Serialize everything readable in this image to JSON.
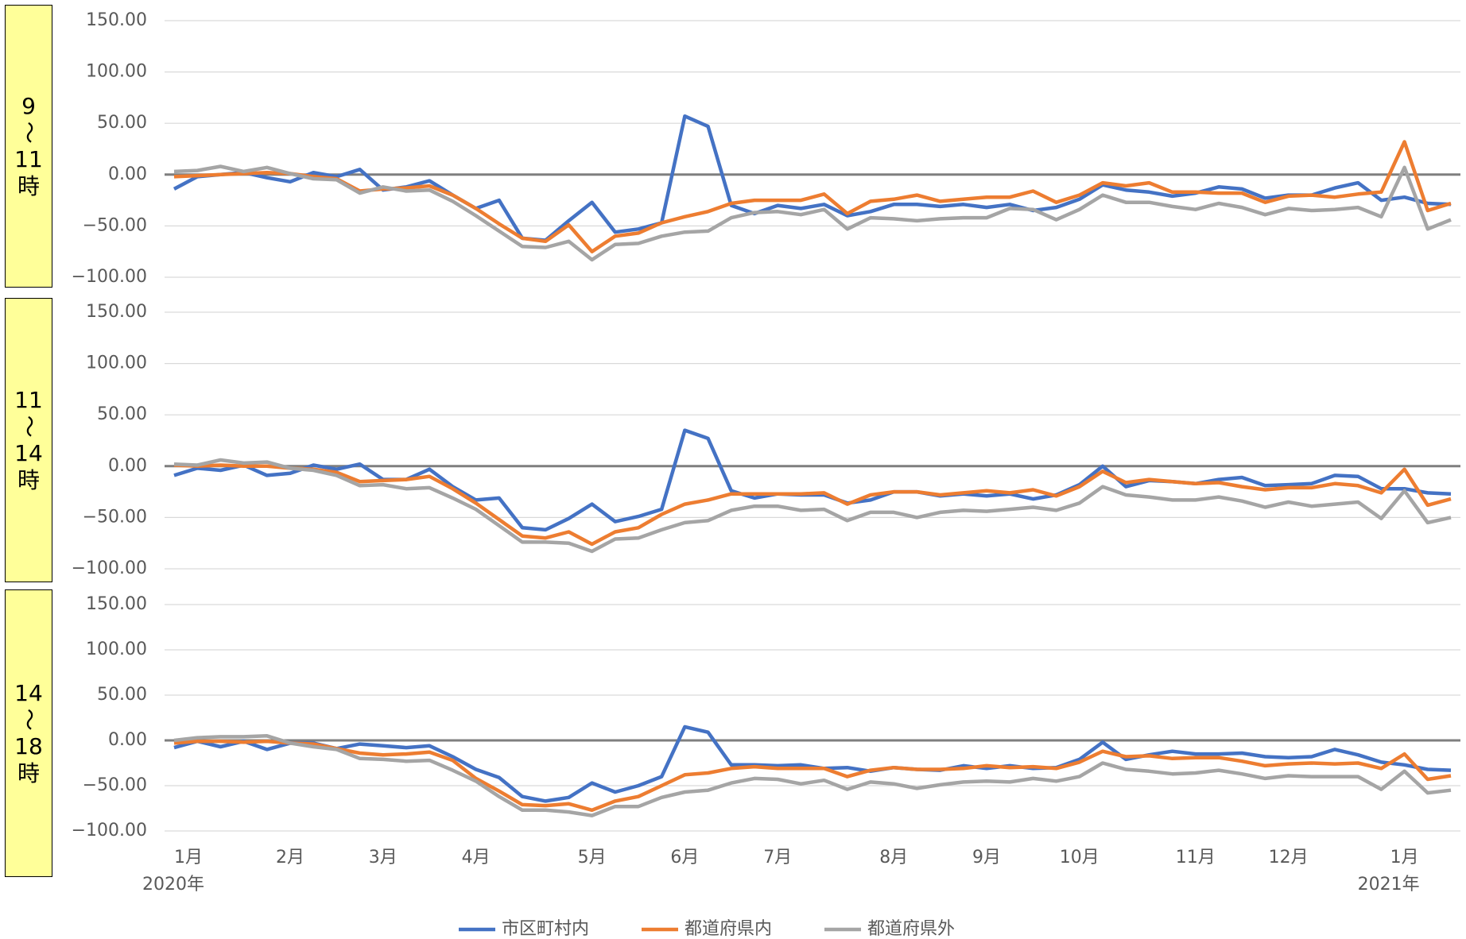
{
  "chart_data": {
    "type": "line",
    "categories": [
      "1月",
      null,
      null,
      null,
      null,
      "2月",
      null,
      null,
      null,
      "3月",
      null,
      null,
      null,
      "4月",
      null,
      null,
      null,
      null,
      "5月",
      null,
      null,
      null,
      "6月",
      null,
      null,
      null,
      "7月",
      null,
      null,
      null,
      null,
      "8月",
      null,
      null,
      null,
      "9月",
      null,
      null,
      null,
      "10月",
      null,
      null,
      null,
      null,
      "11月",
      null,
      null,
      null,
      "12月",
      null,
      null,
      null,
      null,
      "1月",
      null,
      null
    ],
    "x_sublabels": [
      "2020年",
      null,
      null,
      null,
      null,
      null,
      null,
      null,
      null,
      null,
      null,
      null,
      null,
      null,
      null,
      null,
      null,
      null,
      null,
      null,
      null,
      null,
      null,
      null,
      null,
      null,
      null,
      null,
      null,
      null,
      null,
      null,
      null,
      null,
      null,
      null,
      null,
      null,
      null,
      null,
      null,
      null,
      null,
      null,
      null,
      null,
      null,
      null,
      null,
      null,
      null,
      null,
      null,
      "2021年",
      null,
      null
    ],
    "ylim": [
      -100,
      150
    ],
    "yticks": [
      {
        "value": -100,
        "label": "−100.00"
      },
      {
        "value": -50,
        "label": "−50.00"
      },
      {
        "value": 0,
        "label": "0.00"
      },
      {
        "value": 50,
        "label": "50.00"
      },
      {
        "value": 100,
        "label": "100.00"
      },
      {
        "value": 150,
        "label": "150.00"
      }
    ],
    "grid": true,
    "legend": "bottom",
    "series": [
      {
        "name": "市区町村内",
        "color": "#4472c4"
      },
      {
        "name": "都道府県内",
        "color": "#ed7d31"
      },
      {
        "name": "都道府県外",
        "color": "#a5a5a5"
      }
    ],
    "panels": [
      {
        "label": "9～11時",
        "series": [
          {
            "values": [
              -14,
              -2,
              0,
              2,
              -3,
              -7,
              2,
              -2,
              5,
              -15,
              -12,
              -6,
              -20,
              -33,
              -25,
              -62,
              -64,
              -45,
              -27,
              -56,
              -53,
              -47,
              57,
              47,
              -30,
              -38,
              -30,
              -33,
              -29,
              -40,
              -36,
              -29,
              -29,
              -31,
              -29,
              -32,
              -29,
              -35,
              -32,
              -24,
              -10,
              -15,
              -17,
              -21,
              -18,
              -12,
              -14,
              -23,
              -20,
              -20,
              -13,
              -8,
              -25,
              -22,
              -28,
              -29
            ]
          },
          {
            "values": [
              -2,
              -1,
              0,
              1,
              2,
              1,
              -2,
              -4,
              -16,
              -14,
              -13,
              -11,
              -20,
              -33,
              -48,
              -62,
              -65,
              -49,
              -75,
              -60,
              -57,
              -47,
              -41,
              -36,
              -28,
              -25,
              -25,
              -25,
              -19,
              -38,
              -26,
              -24,
              -20,
              -26,
              -24,
              -22,
              -22,
              -16,
              -27,
              -20,
              -8,
              -11,
              -8,
              -17,
              -17,
              -18,
              -18,
              -27,
              -21,
              -20,
              -22,
              -19,
              -17,
              32,
              -35,
              -28
            ]
          },
          {
            "values": [
              3,
              4,
              8,
              3,
              7,
              1,
              -4,
              -5,
              -18,
              -12,
              -16,
              -15,
              -26,
              -40,
              -55,
              -70,
              -71,
              -65,
              -83,
              -68,
              -67,
              -60,
              -56,
              -55,
              -42,
              -37,
              -36,
              -39,
              -34,
              -53,
              -42,
              -43,
              -45,
              -43,
              -42,
              -42,
              -33,
              -34,
              -44,
              -34,
              -20,
              -27,
              -27,
              -31,
              -34,
              -28,
              -32,
              -39,
              -33,
              -35,
              -34,
              -32,
              -41,
              7,
              -53,
              -44
            ]
          }
        ]
      },
      {
        "label": "11～14時",
        "series": [
          {
            "values": [
              -9,
              -2,
              -4,
              1,
              -9,
              -7,
              1,
              -3,
              2,
              -13,
              -13,
              -3,
              -20,
              -33,
              -31,
              -60,
              -62,
              -51,
              -37,
              -54,
              -49,
              -42,
              35,
              27,
              -24,
              -31,
              -27,
              -28,
              -28,
              -36,
              -33,
              -25,
              -25,
              -29,
              -27,
              -29,
              -27,
              -32,
              -28,
              -18,
              0,
              -20,
              -14,
              -15,
              -17,
              -13,
              -11,
              -19,
              -18,
              -17,
              -9,
              -10,
              -22,
              -22,
              -26,
              -27
            ]
          },
          {
            "values": [
              1,
              0,
              1,
              0,
              0,
              -2,
              -3,
              -6,
              -15,
              -14,
              -13,
              -10,
              -22,
              -36,
              -52,
              -68,
              -70,
              -64,
              -76,
              -64,
              -60,
              -47,
              -37,
              -33,
              -27,
              -27,
              -27,
              -27,
              -26,
              -37,
              -28,
              -25,
              -25,
              -28,
              -26,
              -24,
              -26,
              -23,
              -29,
              -20,
              -5,
              -16,
              -13,
              -15,
              -17,
              -16,
              -20,
              -23,
              -21,
              -21,
              -17,
              -19,
              -26,
              -3,
              -38,
              -32
            ]
          },
          {
            "values": [
              2,
              1,
              6,
              3,
              4,
              -2,
              -4,
              -9,
              -19,
              -18,
              -22,
              -21,
              -31,
              -42,
              -58,
              -74,
              -74,
              -75,
              -83,
              -71,
              -70,
              -62,
              -55,
              -53,
              -43,
              -39,
              -39,
              -43,
              -42,
              -53,
              -45,
              -45,
              -50,
              -45,
              -43,
              -44,
              -42,
              -40,
              -43,
              -36,
              -20,
              -28,
              -30,
              -33,
              -33,
              -30,
              -34,
              -40,
              -35,
              -39,
              -37,
              -35,
              -51,
              -24,
              -55,
              -50
            ]
          }
        ]
      },
      {
        "label": "14～18時",
        "series": [
          {
            "values": [
              -8,
              -1,
              -7,
              -1,
              -10,
              -3,
              -3,
              -9,
              -4,
              -6,
              -8,
              -6,
              -18,
              -32,
              -41,
              -62,
              -67,
              -63,
              -47,
              -57,
              -50,
              -40,
              15,
              9,
              -27,
              -27,
              -28,
              -27,
              -31,
              -30,
              -34,
              -30,
              -32,
              -33,
              -28,
              -31,
              -28,
              -31,
              -30,
              -21,
              -2,
              -21,
              -16,
              -12,
              -15,
              -15,
              -14,
              -18,
              -19,
              -18,
              -10,
              -16,
              -24,
              -27,
              -32,
              -33
            ]
          },
          {
            "values": [
              -3,
              -1,
              -1,
              -2,
              -1,
              -3,
              -4,
              -9,
              -14,
              -16,
              -15,
              -13,
              -22,
              -42,
              -56,
              -71,
              -72,
              -70,
              -77,
              -67,
              -62,
              -50,
              -38,
              -36,
              -31,
              -29,
              -31,
              -31,
              -31,
              -40,
              -33,
              -30,
              -32,
              -32,
              -31,
              -28,
              -30,
              -29,
              -31,
              -24,
              -12,
              -18,
              -17,
              -20,
              -19,
              -19,
              -23,
              -28,
              -26,
              -25,
              -26,
              -25,
              -31,
              -15,
              -43,
              -39
            ]
          },
          {
            "values": [
              0,
              3,
              4,
              4,
              5,
              -3,
              -7,
              -10,
              -20,
              -21,
              -23,
              -22,
              -33,
              -45,
              -62,
              -77,
              -77,
              -79,
              -83,
              -73,
              -73,
              -63,
              -57,
              -55,
              -47,
              -42,
              -43,
              -48,
              -44,
              -54,
              -46,
              -48,
              -53,
              -49,
              -46,
              -45,
              -46,
              -42,
              -45,
              -40,
              -25,
              -32,
              -34,
              -37,
              -36,
              -33,
              -37,
              -42,
              -39,
              -40,
              -40,
              -40,
              -54,
              -34,
              -58,
              -55
            ]
          }
        ]
      }
    ]
  }
}
